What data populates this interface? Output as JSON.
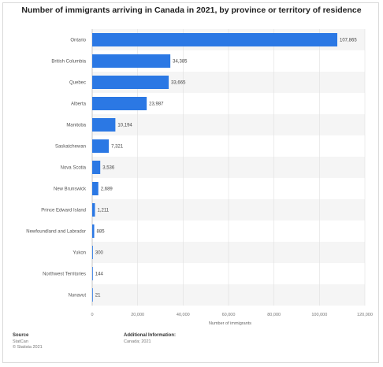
{
  "chart_data": {
    "type": "bar",
    "orientation": "horizontal",
    "title": "Number of immigrants arriving in Canada in 2021, by province or territory of residence",
    "xlabel": "Number of immigrants",
    "ylabel": "",
    "xlim": [
      0,
      120000
    ],
    "ticks": [
      0,
      20000,
      40000,
      60000,
      80000,
      100000,
      120000
    ],
    "tick_labels": [
      "0",
      "20,000",
      "40,000",
      "60,000",
      "80,000",
      "100,000",
      "120,000"
    ],
    "grid": true,
    "bar_color": "#2b78e4",
    "categories": [
      "Ontario",
      "British Columbia",
      "Quebec",
      "Alberta",
      "Manitoba",
      "Saskatchewan",
      "Nova Scotia",
      "New Brunswick",
      "Prince Edward Island",
      "Newfoundland and Labrador",
      "Yukon",
      "Northwest Territories",
      "Nunavut"
    ],
    "values": [
      107865,
      34385,
      33665,
      23987,
      10194,
      7321,
      3536,
      2689,
      1211,
      885,
      300,
      144,
      21
    ],
    "value_labels": [
      "107,865",
      "34,385",
      "33,665",
      "23,987",
      "10,194",
      "7,321",
      "3,536",
      "2,689",
      "1,211",
      "885",
      "300",
      "144",
      "21"
    ]
  },
  "footer": {
    "source_heading": "Source",
    "source_lines": [
      "StatCan",
      "© Statista 2021"
    ],
    "info_heading": "Additional Information:",
    "info_lines": [
      "Canada; 2021"
    ]
  }
}
